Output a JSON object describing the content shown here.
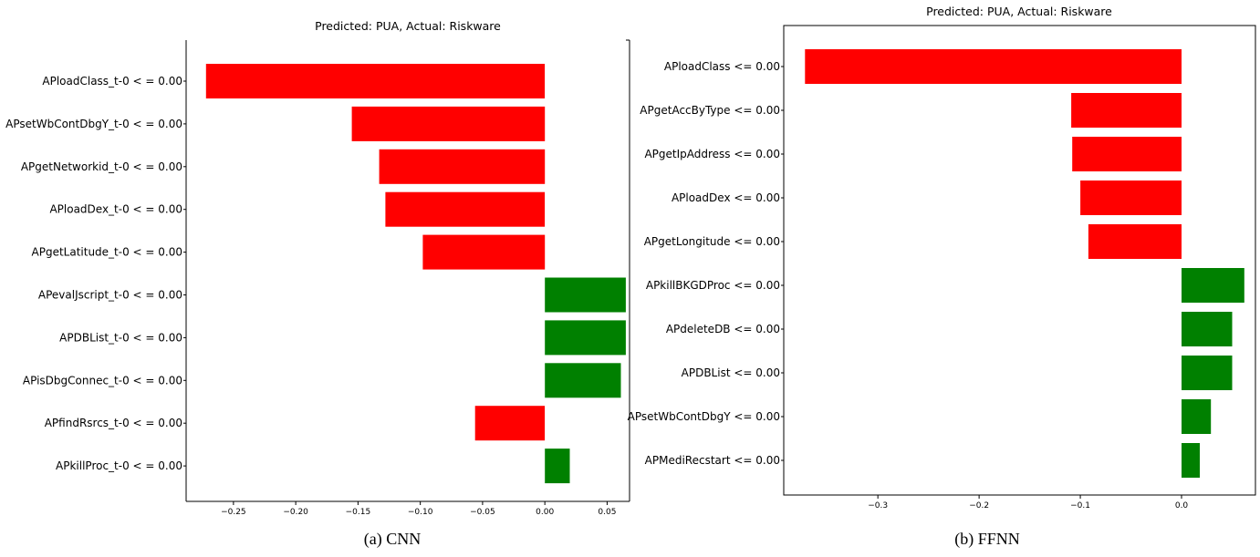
{
  "chart_data": [
    {
      "type": "bar",
      "orientation": "horizontal",
      "title": "Predicted: PUA, Actual: Riskware",
      "caption": "(a) CNN",
      "categories": [
        "APloadClass_t-0 < = 0.00",
        "APsetWbContDbgY_t-0 < = 0.00",
        "APgetNetworkid_t-0 < = 0.00",
        "APloadDex_t-0 < = 0.00",
        "APgetLatitude_t-0 < = 0.00",
        "APevalJscript_t-0 < = 0.00",
        "APDBList_t-0 < = 0.00",
        "APisDbgConnec_t-0 < = 0.00",
        "APfindRsrcs_t-0 < = 0.00",
        "APkillProc_t-0 < = 0.00"
      ],
      "values": [
        -0.272,
        -0.155,
        -0.133,
        -0.128,
        -0.098,
        0.065,
        0.065,
        0.061,
        -0.056,
        0.02
      ],
      "xticks": [
        -0.25,
        -0.2,
        -0.15,
        -0.1,
        -0.05,
        0.0,
        0.05
      ],
      "xtick_labels": [
        "−0.25",
        "−0.20",
        "−0.15",
        "−0.10",
        "−0.05",
        "0.00",
        "0.05"
      ],
      "xlim": [
        -0.288,
        0.068
      ],
      "colors": {
        "negative": "#ff0000",
        "positive": "#008000"
      },
      "frame": "left-right-bottom-open-top"
    },
    {
      "type": "bar",
      "orientation": "horizontal",
      "title": "Predicted: PUA, Actual: Riskware",
      "caption": "(b) FFNN",
      "categories": [
        "APloadClass <= 0.00",
        "APgetAccByType <= 0.00",
        "APgetIpAddress <= 0.00",
        "APloadDex <= 0.00",
        "APgetLongitude <= 0.00",
        "APkillBKGDProc <= 0.00",
        "APdeleteDB <= 0.00",
        "APDBList <= 0.00",
        "APsetWbContDbgY <= 0.00",
        "APMediRecstart <= 0.00"
      ],
      "values": [
        -0.372,
        -0.109,
        -0.108,
        -0.1,
        -0.092,
        0.062,
        0.05,
        0.05,
        0.029,
        0.018
      ],
      "xticks": [
        -0.3,
        -0.2,
        -0.1,
        0.0
      ],
      "xtick_labels": [
        "−0.3",
        "−0.2",
        "−0.1",
        "0.0"
      ],
      "xlim": [
        -0.393,
        0.073
      ],
      "colors": {
        "negative": "#ff0000",
        "positive": "#008000"
      },
      "frame": "full-box"
    }
  ]
}
